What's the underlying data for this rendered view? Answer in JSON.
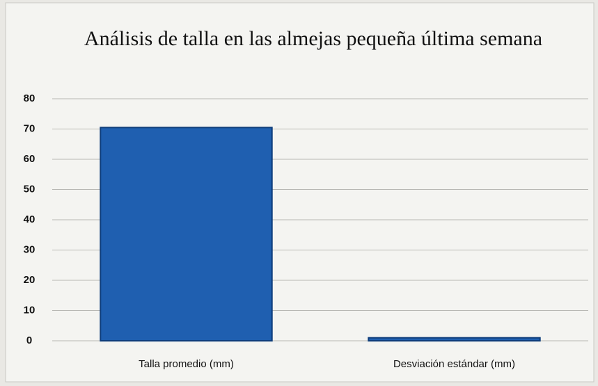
{
  "chart_data": {
    "type": "bar",
    "title": "Análisis de talla en las almejas pequeña última semana",
    "categories": [
      "Talla promedio (mm)",
      "Desviación estándar (mm)"
    ],
    "values": [
      70.5,
      1
    ],
    "color": "#1f5fb0",
    "ylim": [
      0,
      80
    ],
    "yticks": [
      0,
      10,
      20,
      30,
      40,
      50,
      60,
      70,
      80
    ],
    "grid": true
  }
}
